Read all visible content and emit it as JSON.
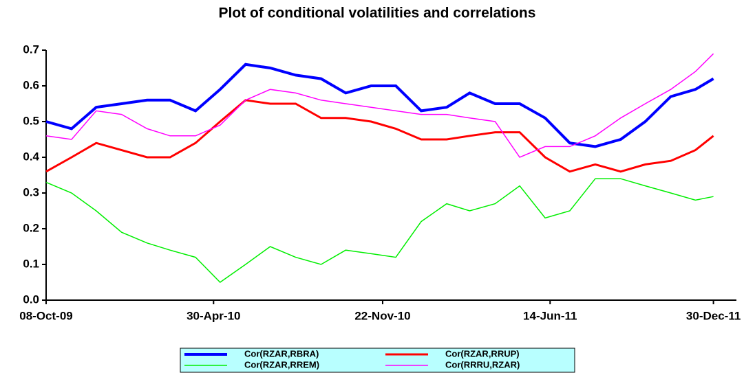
{
  "chart_data": {
    "type": "line",
    "title": "Plot of conditional volatilities and correlations",
    "x": [
      "2009-10-08",
      "2009-11-08",
      "2009-12-08",
      "2010-01-08",
      "2010-02-08",
      "2010-03-08",
      "2010-04-08",
      "2010-05-08",
      "2010-06-08",
      "2010-07-08",
      "2010-08-08",
      "2010-09-08",
      "2010-10-08",
      "2010-11-08",
      "2010-12-08",
      "2011-01-08",
      "2011-02-08",
      "2011-03-08",
      "2011-04-08",
      "2011-05-08",
      "2011-06-08",
      "2011-07-08",
      "2011-08-08",
      "2011-09-08",
      "2011-10-08",
      "2011-11-08",
      "2011-12-08",
      "2011-12-30"
    ],
    "series": [
      {
        "name": "Cor(RZAR,RBRA)",
        "color": "#0000ff",
        "values": [
          0.5,
          0.48,
          0.54,
          0.55,
          0.56,
          0.56,
          0.53,
          0.59,
          0.66,
          0.65,
          0.63,
          0.62,
          0.58,
          0.6,
          0.6,
          0.53,
          0.54,
          0.58,
          0.55,
          0.55,
          0.51,
          0.44,
          0.43,
          0.45,
          0.5,
          0.57,
          0.59,
          0.62
        ]
      },
      {
        "name": "Cor(RZAR,RRUP)",
        "color": "#ff0000",
        "values": [
          0.36,
          0.4,
          0.44,
          0.42,
          0.4,
          0.4,
          0.44,
          0.5,
          0.56,
          0.55,
          0.55,
          0.51,
          0.51,
          0.5,
          0.48,
          0.45,
          0.45,
          0.46,
          0.47,
          0.47,
          0.4,
          0.36,
          0.38,
          0.36,
          0.38,
          0.39,
          0.42,
          0.46
        ]
      },
      {
        "name": "Cor(RZAR,RREM)",
        "color": "#00ee00",
        "values": [
          0.33,
          0.3,
          0.25,
          0.19,
          0.16,
          0.14,
          0.12,
          0.05,
          0.1,
          0.15,
          0.12,
          0.1,
          0.14,
          0.13,
          0.12,
          0.22,
          0.27,
          0.25,
          0.27,
          0.32,
          0.23,
          0.25,
          0.34,
          0.34,
          0.32,
          0.3,
          0.28,
          0.29
        ]
      },
      {
        "name": "Cor(RRRU,RZAR)",
        "color": "#ff00ff",
        "values": [
          0.46,
          0.45,
          0.53,
          0.52,
          0.48,
          0.46,
          0.46,
          0.49,
          0.56,
          0.59,
          0.58,
          0.56,
          0.55,
          0.54,
          0.53,
          0.52,
          0.52,
          0.51,
          0.5,
          0.4,
          0.43,
          0.43,
          0.46,
          0.51,
          0.55,
          0.59,
          0.64,
          0.69
        ]
      }
    ],
    "xlim": [
      "2009-10-08",
      "2012-01-27"
    ],
    "xticks": [
      {
        "value": "2009-10-08",
        "label": "08-Oct-09"
      },
      {
        "value": "2010-04-30",
        "label": "30-Apr-10"
      },
      {
        "value": "2010-11-22",
        "label": "22-Nov-10"
      },
      {
        "value": "2011-06-14",
        "label": "14-Jun-11"
      },
      {
        "value": "2011-12-30",
        "label": "30-Dec-11"
      }
    ],
    "ylim": [
      0,
      0.7
    ],
    "yticks": [
      {
        "value": 0,
        "label": "0.0"
      },
      0.1,
      0.2,
      0.3,
      0.4,
      0.5,
      0.6,
      0.7
    ]
  }
}
